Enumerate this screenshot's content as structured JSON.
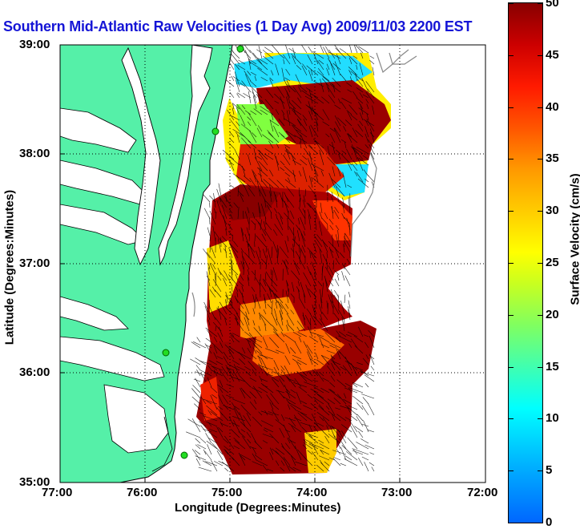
{
  "title": "Southern Mid-Atlantic Raw Velocities (1 Day Avg) 2009/11/03 2200 EST",
  "x_axis": {
    "label": "Longitude (Degrees:Minutes)",
    "ticks": [
      "77:00",
      "76:00",
      "75:00",
      "74:00",
      "73:00",
      "72:00"
    ],
    "range": [
      -77,
      -72
    ]
  },
  "y_axis": {
    "label": "Latitude (Degrees:Minutes)",
    "ticks": [
      "39:00",
      "38:00",
      "37:00",
      "36:00",
      "35:00"
    ],
    "range": [
      35,
      39
    ]
  },
  "colorbar": {
    "label": "Surface Velocity (cm/s)",
    "ticks": [
      "0",
      "5",
      "10",
      "15",
      "20",
      "25",
      "30",
      "35",
      "40",
      "45",
      "50"
    ],
    "range": [
      0,
      50
    ]
  },
  "colors": {
    "land": "#55f0a8",
    "title": "#1515d6",
    "coast": "#000000",
    "shelf": "#888888",
    "station": "#22dd22"
  }
}
